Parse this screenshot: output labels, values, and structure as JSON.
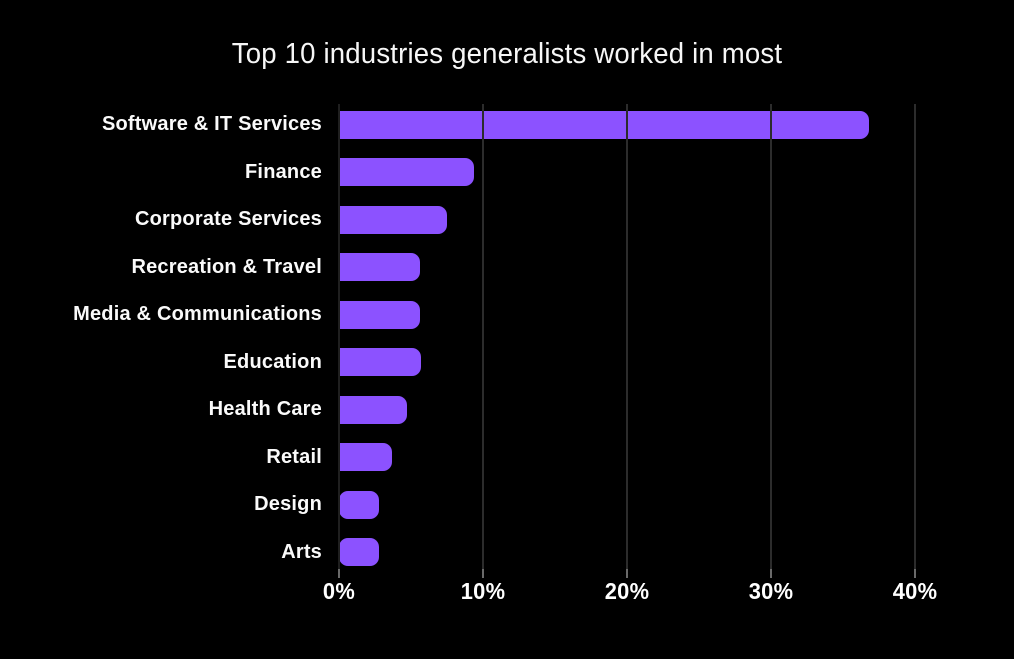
{
  "title": "Top 10 industries generalists worked in most",
  "chart_data": {
    "type": "bar",
    "orientation": "horizontal",
    "title": "Top 10 industries generalists worked in most",
    "categories": [
      "Software & IT Services",
      "Finance",
      "Corporate Services",
      "Recreation & Travel",
      "Media & Communications",
      "Education",
      "Health Care",
      "Retail",
      "Design",
      "Arts"
    ],
    "values": [
      36.8,
      9.4,
      7.5,
      5.6,
      5.6,
      5.7,
      4.7,
      3.7,
      2.8,
      2.8
    ],
    "unit": "%",
    "xlabel": "",
    "ylabel": "",
    "x_ticks": [
      0,
      10,
      20,
      30,
      40
    ],
    "x_tick_labels": [
      "0%",
      "10%",
      "20%",
      "30%",
      "40%"
    ],
    "xlim": [
      0,
      43
    ],
    "grid": "vertical-gridlines",
    "legend": "none",
    "colors": {
      "background": "#000000",
      "bar": "#8c52ff",
      "gridline": "#2c2c2c",
      "tick": "#6a6a6a",
      "text": "#ffffff"
    }
  }
}
